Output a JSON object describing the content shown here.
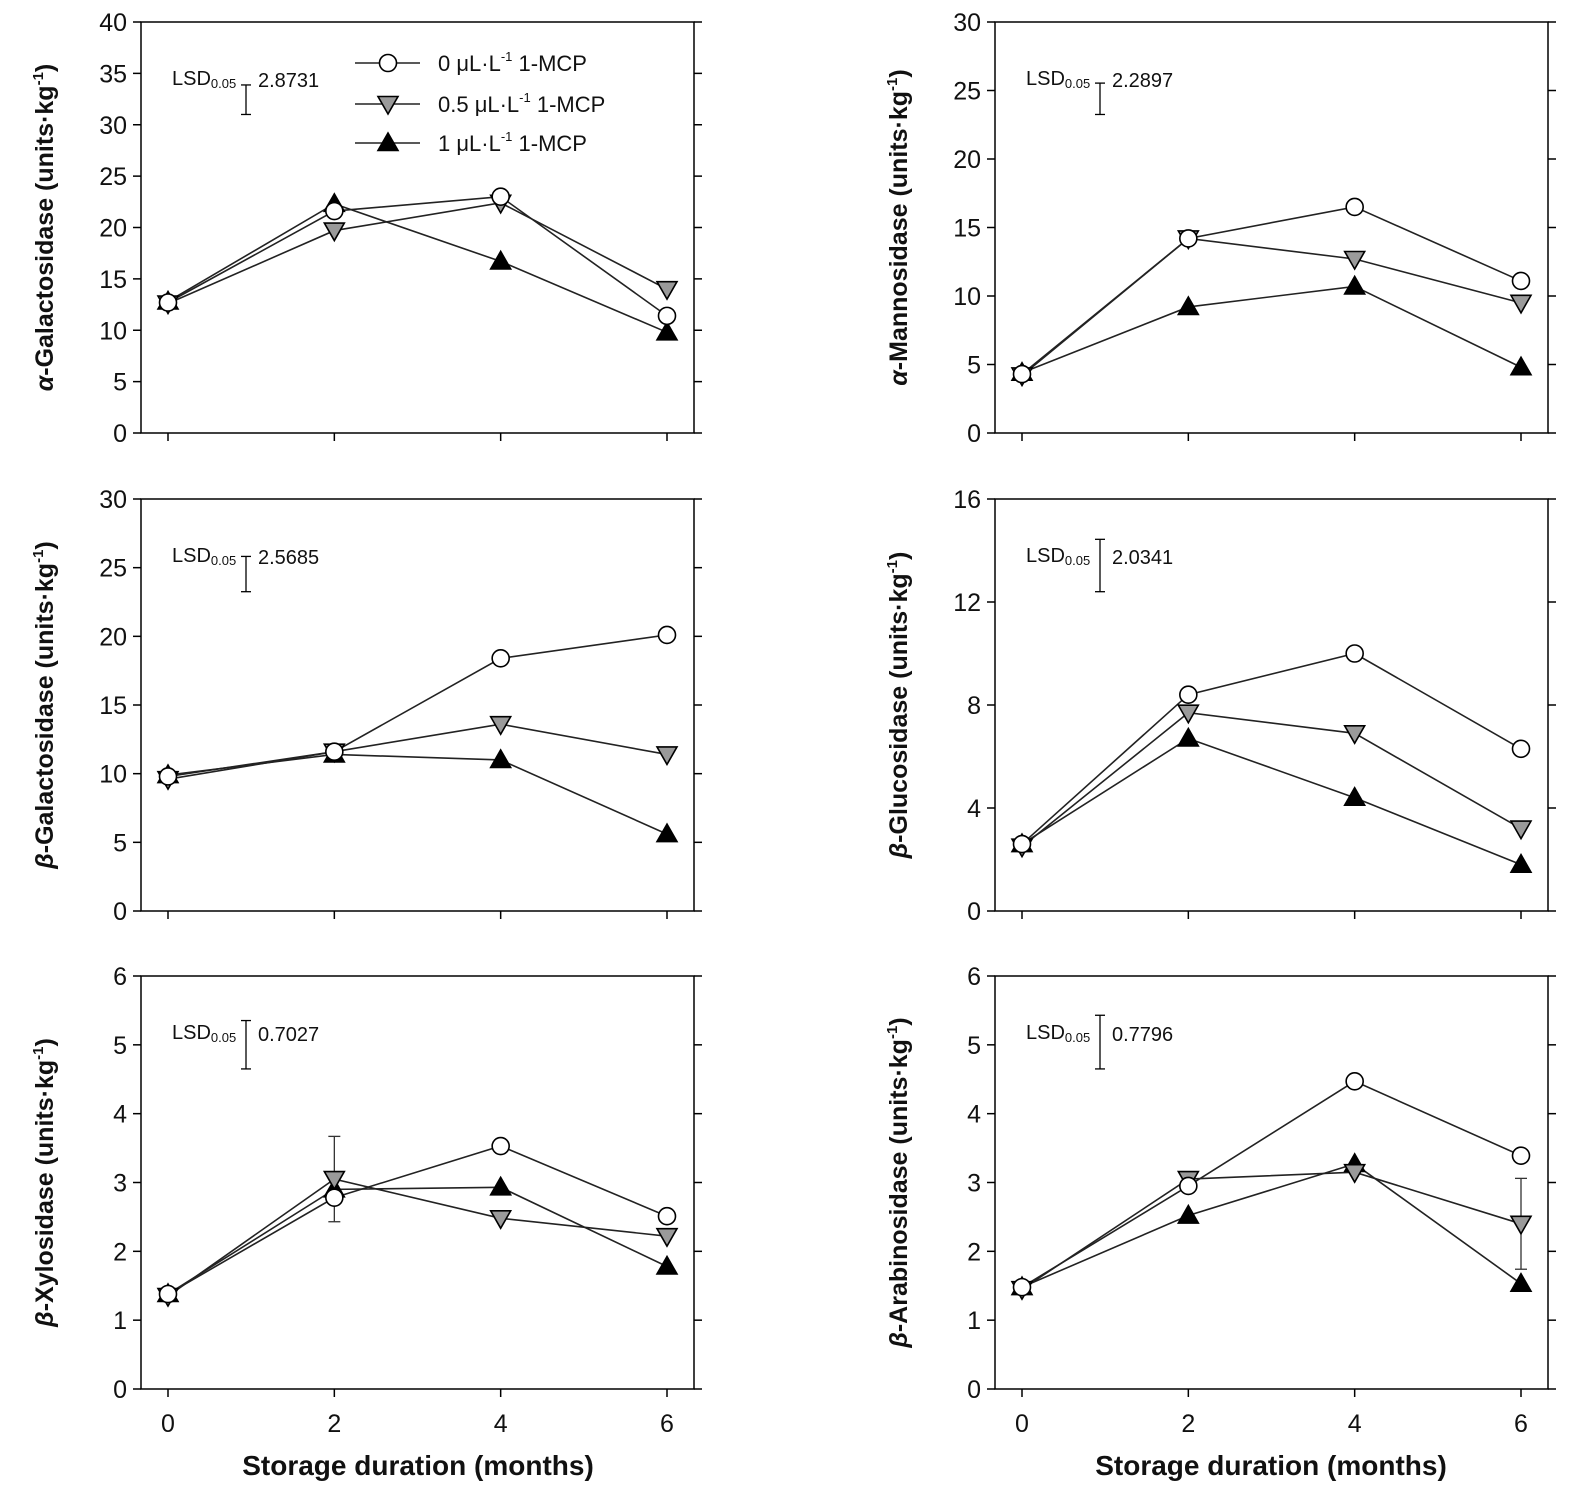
{
  "colors": {
    "open_marker": "#ffffff",
    "mid_marker": "#9a9a9a",
    "filled_marker": "#000000",
    "line": "#222222"
  },
  "legend": [
    {
      "pre": "0 μL·L",
      "sup": "-1",
      "post": " 1-MCP",
      "marker": "open-circle"
    },
    {
      "pre": "0.5 μL·L",
      "sup": "-1",
      "post": " 1-MCP",
      "marker": "gray-down-triangle"
    },
    {
      "pre": "1 μL·L",
      "sup": "-1",
      "post": " 1-MCP",
      "marker": "black-up-triangle"
    }
  ],
  "xlabel": "Storage duration (months)",
  "units_text": " (units·kg",
  "units_sup": "-1",
  "units_close": ")",
  "lsd_label": "LSD",
  "lsd_sub": "0.05",
  "chart_data": [
    {
      "type": "line",
      "prefix": "α",
      "name": "-Galactosidase",
      "x": [
        0,
        2,
        4,
        6
      ],
      "xticks": [
        "0",
        "2",
        "4",
        "6"
      ],
      "ylim": [
        0,
        40
      ],
      "yticks": [
        "0",
        "5",
        "10",
        "15",
        "20",
        "25",
        "30",
        "35",
        "40"
      ],
      "lsd": 2.8731,
      "lsd_text": "2.8731",
      "series": [
        {
          "name": "0 μL·L-1 1-MCP",
          "values": [
            12.7,
            21.6,
            23.0,
            11.4
          ]
        },
        {
          "name": "0.5 μL·L-1 1-MCP",
          "values": [
            12.6,
            19.7,
            22.4,
            14.0
          ]
        },
        {
          "name": "1 μL·L-1 1-MCP",
          "values": [
            12.8,
            22.3,
            16.7,
            9.8
          ]
        }
      ]
    },
    {
      "type": "line",
      "prefix": "α",
      "name": "-Mannosidase",
      "x": [
        0,
        2,
        4,
        6
      ],
      "xticks": [
        "0",
        "2",
        "4",
        "6"
      ],
      "ylim": [
        0,
        30
      ],
      "yticks": [
        "0",
        "5",
        "10",
        "15",
        "20",
        "25",
        "30"
      ],
      "lsd": 2.2897,
      "lsd_text": "2.2897",
      "series": [
        {
          "name": "0 μL·L-1 1-MCP",
          "values": [
            4.3,
            14.2,
            16.5,
            11.1
          ]
        },
        {
          "name": "0.5 μL·L-1 1-MCP",
          "values": [
            4.2,
            14.2,
            12.7,
            9.5
          ]
        },
        {
          "name": "1 μL·L-1 1-MCP",
          "values": [
            4.4,
            9.2,
            10.7,
            4.8
          ]
        }
      ]
    },
    {
      "type": "line",
      "prefix": "β",
      "name": "-Galactosidase",
      "x": [
        0,
        2,
        4,
        6
      ],
      "xticks": [
        "0",
        "2",
        "4",
        "6"
      ],
      "ylim": [
        0,
        30
      ],
      "yticks": [
        "0",
        "5",
        "10",
        "15",
        "20",
        "25",
        "30"
      ],
      "lsd": 2.5685,
      "lsd_text": "2.5685",
      "series": [
        {
          "name": "0 μL·L-1 1-MCP",
          "values": [
            9.8,
            11.6,
            18.4,
            20.1
          ]
        },
        {
          "name": "0.5 μL·L-1 1-MCP",
          "values": [
            9.6,
            11.6,
            13.6,
            11.4
          ]
        },
        {
          "name": "1 μL·L-1 1-MCP",
          "values": [
            9.9,
            11.4,
            11.0,
            5.6
          ]
        }
      ]
    },
    {
      "type": "line",
      "prefix": "β",
      "name": "-Glucosidase",
      "x": [
        0,
        2,
        4,
        6
      ],
      "xticks": [
        "0",
        "2",
        "4",
        "6"
      ],
      "ylim": [
        0,
        16
      ],
      "yticks": [
        "0",
        "4",
        "8",
        "12",
        "16"
      ],
      "lsd": 2.0341,
      "lsd_text": "2.0341",
      "series": [
        {
          "name": "0 μL·L-1 1-MCP",
          "values": [
            2.6,
            8.4,
            10.0,
            6.3
          ]
        },
        {
          "name": "0.5 μL·L-1 1-MCP",
          "values": [
            2.5,
            7.7,
            6.9,
            3.2
          ]
        },
        {
          "name": "1 μL·L-1 1-MCP",
          "values": [
            2.6,
            6.7,
            4.4,
            1.8
          ]
        }
      ]
    },
    {
      "type": "line",
      "prefix": "β",
      "name": "-Xylosidase",
      "x": [
        0,
        2,
        4,
        6
      ],
      "xticks": [
        "0",
        "2",
        "4",
        "6"
      ],
      "ylim": [
        0,
        6
      ],
      "yticks": [
        "0",
        "1",
        "2",
        "3",
        "4",
        "5",
        "6"
      ],
      "lsd": 0.7027,
      "lsd_text": "0.7027",
      "series": [
        {
          "name": "0 μL·L-1 1-MCP",
          "values": [
            1.38,
            2.78,
            3.53,
            2.51
          ]
        },
        {
          "name": "0.5 μL·L-1 1-MCP",
          "values": [
            1.35,
            3.05,
            2.48,
            2.22
          ],
          "error": [
            null,
            0.62,
            null,
            null
          ]
        },
        {
          "name": "1 μL·L-1 1-MCP",
          "values": [
            1.38,
            2.9,
            2.93,
            1.78
          ]
        }
      ]
    },
    {
      "type": "line",
      "prefix": "β",
      "name": "-Arabinosidase",
      "x": [
        0,
        2,
        4,
        6
      ],
      "xticks": [
        "0",
        "2",
        "4",
        "6"
      ],
      "ylim": [
        0,
        6
      ],
      "yticks": [
        "0",
        "1",
        "2",
        "3",
        "4",
        "5",
        "6"
      ],
      "lsd": 0.7796,
      "lsd_text": "0.7796",
      "series": [
        {
          "name": "0 μL·L-1 1-MCP",
          "values": [
            1.48,
            2.95,
            4.47,
            3.39
          ]
        },
        {
          "name": "0.5 μL·L-1 1-MCP",
          "values": [
            1.45,
            3.05,
            3.15,
            2.4
          ],
          "error": [
            null,
            null,
            null,
            0.66
          ]
        },
        {
          "name": "1 μL·L-1 1-MCP",
          "values": [
            1.48,
            2.52,
            3.27,
            1.53
          ]
        }
      ]
    }
  ]
}
